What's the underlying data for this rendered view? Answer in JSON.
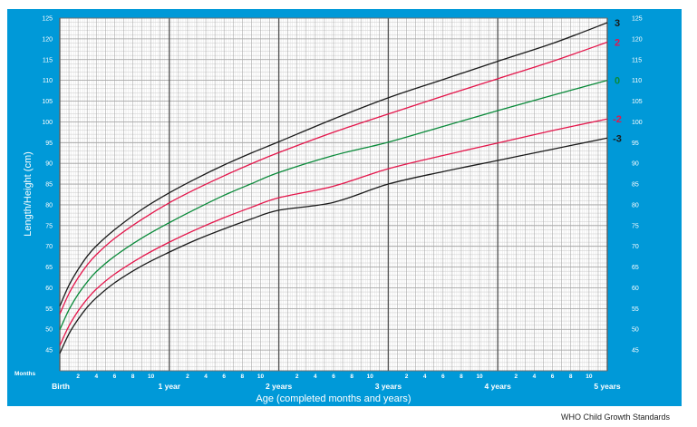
{
  "colors": {
    "frame": "#0099d8",
    "grid_minor": "#bdbdbd",
    "grid_year": "#555555",
    "sd3": "#1a1a1a",
    "sd2": "#e4164b",
    "sd0": "#0a8a3a",
    "tick_text_white": "#ffffff"
  },
  "chart_data": {
    "type": "line",
    "title": "",
    "xlabel": "Age (completed months and years)",
    "ylabel": "Length/Height (cm)",
    "months_label": "Months",
    "xlim": [
      0,
      60
    ],
    "ylim": [
      40,
      125
    ],
    "y_ticks": [
      45,
      50,
      55,
      60,
      65,
      70,
      75,
      80,
      85,
      90,
      95,
      100,
      105,
      110,
      115,
      120,
      125
    ],
    "x_month_ticks": [
      {
        "month": 2,
        "label": "2"
      },
      {
        "month": 4,
        "label": "4"
      },
      {
        "month": 6,
        "label": "6"
      },
      {
        "month": 8,
        "label": "8"
      },
      {
        "month": 10,
        "label": "10"
      },
      {
        "month": 14,
        "label": "2"
      },
      {
        "month": 16,
        "label": "4"
      },
      {
        "month": 18,
        "label": "6"
      },
      {
        "month": 20,
        "label": "8"
      },
      {
        "month": 22,
        "label": "10"
      },
      {
        "month": 26,
        "label": "2"
      },
      {
        "month": 28,
        "label": "4"
      },
      {
        "month": 30,
        "label": "6"
      },
      {
        "month": 32,
        "label": "8"
      },
      {
        "month": 34,
        "label": "10"
      },
      {
        "month": 38,
        "label": "2"
      },
      {
        "month": 40,
        "label": "4"
      },
      {
        "month": 42,
        "label": "6"
      },
      {
        "month": 44,
        "label": "8"
      },
      {
        "month": 46,
        "label": "10"
      },
      {
        "month": 50,
        "label": "2"
      },
      {
        "month": 52,
        "label": "4"
      },
      {
        "month": 54,
        "label": "6"
      },
      {
        "month": 56,
        "label": "8"
      },
      {
        "month": 58,
        "label": "10"
      }
    ],
    "x_year_labels": [
      {
        "month": 0,
        "label": "Birth"
      },
      {
        "month": 12,
        "label": "1 year"
      },
      {
        "month": 24,
        "label": "2 years"
      },
      {
        "month": 36,
        "label": "3 years"
      },
      {
        "month": 48,
        "label": "4 years"
      },
      {
        "month": 60,
        "label": "5 years"
      }
    ],
    "x": [
      0,
      1,
      2,
      3,
      4,
      6,
      9,
      12,
      15,
      18,
      21,
      24,
      30,
      36,
      42,
      48,
      54,
      60
    ],
    "series": [
      {
        "name": "3",
        "color_key": "sd3",
        "values": [
          55.6,
          60.6,
          64.4,
          67.6,
          70.1,
          74.0,
          78.9,
          82.9,
          86.4,
          89.6,
          92.5,
          95.2,
          100.7,
          105.8,
          110.2,
          114.6,
          118.9,
          123.9
        ]
      },
      {
        "name": "2",
        "color_key": "sd2",
        "values": [
          53.7,
          58.6,
          62.4,
          65.5,
          68.0,
          71.9,
          76.5,
          80.5,
          83.9,
          87.0,
          89.9,
          92.6,
          97.5,
          101.9,
          106.2,
          110.4,
          114.6,
          119.2
        ]
      },
      {
        "name": "0",
        "color_key": "sd0",
        "values": [
          49.9,
          54.7,
          58.4,
          61.4,
          63.9,
          67.6,
          72.0,
          75.7,
          79.1,
          82.3,
          85.1,
          87.8,
          91.9,
          95.1,
          98.9,
          102.7,
          106.4,
          110.0
        ]
      },
      {
        "name": "-2",
        "color_key": "sd2",
        "values": [
          46.1,
          50.8,
          54.4,
          57.3,
          59.7,
          63.3,
          67.5,
          71.0,
          74.1,
          76.9,
          79.4,
          81.7,
          84.5,
          88.7,
          91.9,
          94.9,
          97.9,
          100.7
        ]
      },
      {
        "name": "-3",
        "color_key": "sd3",
        "values": [
          44.2,
          48.9,
          52.4,
          55.3,
          57.6,
          61.2,
          65.3,
          68.6,
          71.6,
          74.2,
          76.6,
          78.7,
          80.6,
          85.0,
          88.0,
          90.7,
          93.4,
          96.1
        ]
      }
    ]
  },
  "footer": "WHO Child Growth Standards"
}
